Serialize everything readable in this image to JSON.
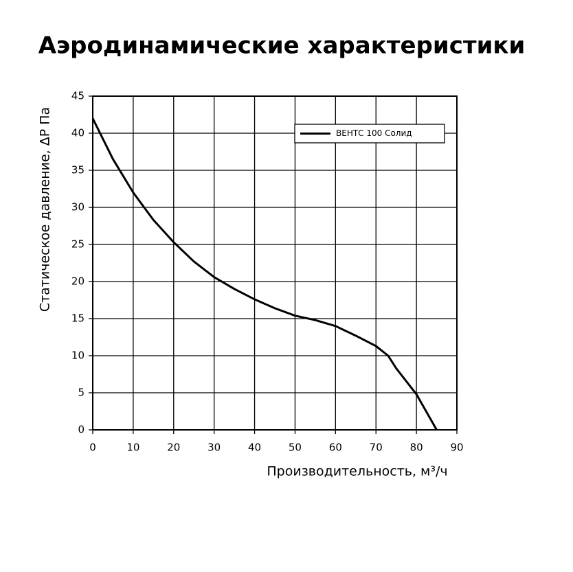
{
  "chart_data": {
    "type": "line",
    "title": "Аэродинамические характеристики",
    "x_label": "Производительность, м³/ч",
    "y_label": "Статическое давление, ΔP Па",
    "x": [
      0,
      5,
      10,
      15,
      20,
      25,
      30,
      35,
      40,
      45,
      50,
      55,
      60,
      65,
      70,
      73,
      75,
      80,
      85
    ],
    "series": [
      {
        "name": "ВЕНТС 100 Солид",
        "color": "#000000",
        "values": [
          42,
          36.5,
          32,
          28.3,
          25.3,
          22.7,
          20.6,
          19,
          17.6,
          16.4,
          15.4,
          14.8,
          14,
          12.7,
          11.3,
          10,
          8.3,
          4.8,
          0
        ]
      }
    ],
    "xlim": [
      0,
      90
    ],
    "xticks": [
      0,
      10,
      20,
      30,
      40,
      50,
      60,
      70,
      80,
      90
    ],
    "ylim": [
      0,
      45
    ],
    "yticks": [
      0,
      5,
      10,
      15,
      20,
      25,
      30,
      35,
      40,
      45
    ],
    "grid": true,
    "legend": "upper right"
  }
}
